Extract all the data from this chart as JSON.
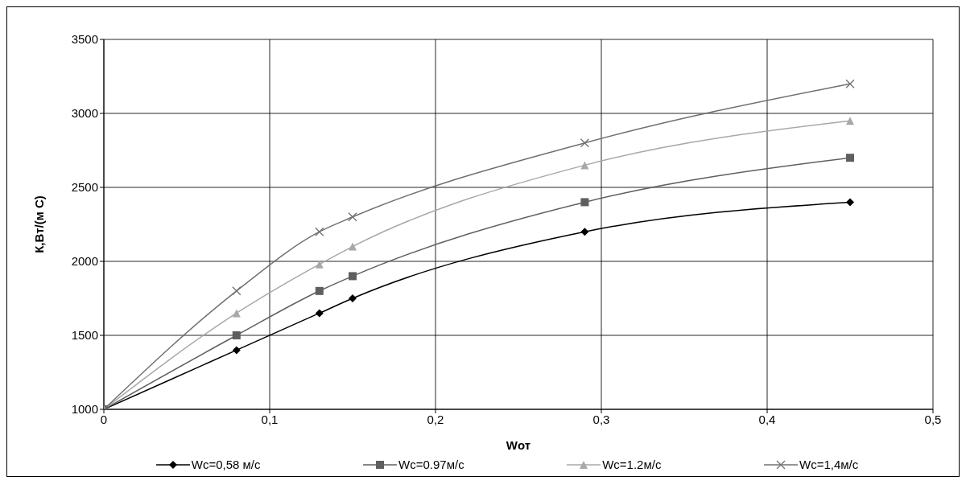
{
  "chart_data": {
    "type": "line",
    "xlabel": "Wот",
    "ylabel": "К,Вт/(м С)",
    "x": [
      0,
      0.08,
      0.13,
      0.15,
      0.29,
      0.45
    ],
    "series": [
      {
        "name": "Wc=0,58 м/с",
        "color": "#000000",
        "marker": "diamond",
        "values": [
          1000,
          1400,
          1650,
          1750,
          2200,
          2400
        ]
      },
      {
        "name": "Wc=0.97м/с",
        "color": "#5f5f5f",
        "marker": "square",
        "values": [
          1000,
          1500,
          1800,
          1900,
          2400,
          2700
        ]
      },
      {
        "name": "Wc=1.2м/с",
        "color": "#a8a8a8",
        "marker": "triangle",
        "values": [
          1000,
          1650,
          1980,
          2100,
          2650,
          2950
        ]
      },
      {
        "name": "Wc=1,4м/с",
        "color": "#707070",
        "marker": "cross",
        "values": [
          1000,
          1800,
          2200,
          2300,
          2800,
          3200
        ]
      }
    ],
    "xlim": [
      0,
      0.5
    ],
    "xticks": [
      0,
      {
        "value": 0.1,
        "label": "0,1"
      },
      {
        "value": 0.2,
        "label": "0,2"
      },
      {
        "value": 0.3,
        "label": "0,3"
      },
      {
        "value": 0.4,
        "label": "0,4"
      },
      {
        "value": 0.5,
        "label": "0,5"
      }
    ],
    "ylim": [
      1000,
      3500
    ],
    "yticks": [
      1000,
      1500,
      2000,
      2500,
      3000,
      3500
    ],
    "grid": true,
    "legend": "bottom",
    "line_style": "solid"
  }
}
